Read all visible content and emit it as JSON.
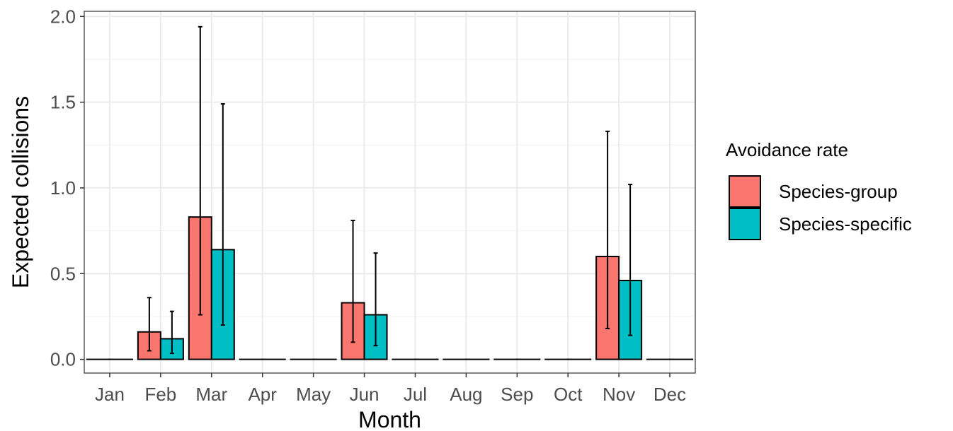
{
  "chart_data": {
    "type": "bar",
    "title": "",
    "xlabel": "Month",
    "ylabel": "Expected collisions",
    "ylim": [
      -0.08,
      2.03
    ],
    "yticks": [
      "0.0",
      "0.5",
      "1.0",
      "1.5",
      "2.0"
    ],
    "ytick_values": [
      0,
      0.5,
      1.0,
      1.5,
      2.0
    ],
    "categories": [
      "Jan",
      "Feb",
      "Mar",
      "Apr",
      "May",
      "Jun",
      "Jul",
      "Aug",
      "Sep",
      "Oct",
      "Nov",
      "Dec"
    ],
    "grid": true,
    "legend": {
      "title": "Avoidance rate",
      "position": "right"
    },
    "series": [
      {
        "name": "Species-group",
        "color": "#F8766D",
        "values": [
          0,
          0.16,
          0.83,
          0,
          0,
          0.33,
          0,
          0,
          0,
          0,
          0.6,
          0
        ],
        "lower": [
          0,
          0.05,
          0.26,
          0,
          0,
          0.1,
          0,
          0,
          0,
          0,
          0.18,
          0
        ],
        "upper": [
          0,
          0.36,
          1.94,
          0,
          0,
          0.81,
          0,
          0,
          0,
          0,
          1.33,
          0
        ]
      },
      {
        "name": "Species-specific",
        "color": "#00BFC4",
        "values": [
          0,
          0.12,
          0.64,
          0,
          0,
          0.26,
          0,
          0,
          0,
          0,
          0.46,
          0
        ],
        "lower": [
          0,
          0.035,
          0.2,
          0,
          0,
          0.08,
          0,
          0,
          0,
          0,
          0.14,
          0
        ],
        "upper": [
          0,
          0.28,
          1.49,
          0,
          0,
          0.62,
          0,
          0,
          0,
          0,
          1.02,
          0
        ]
      }
    ]
  }
}
